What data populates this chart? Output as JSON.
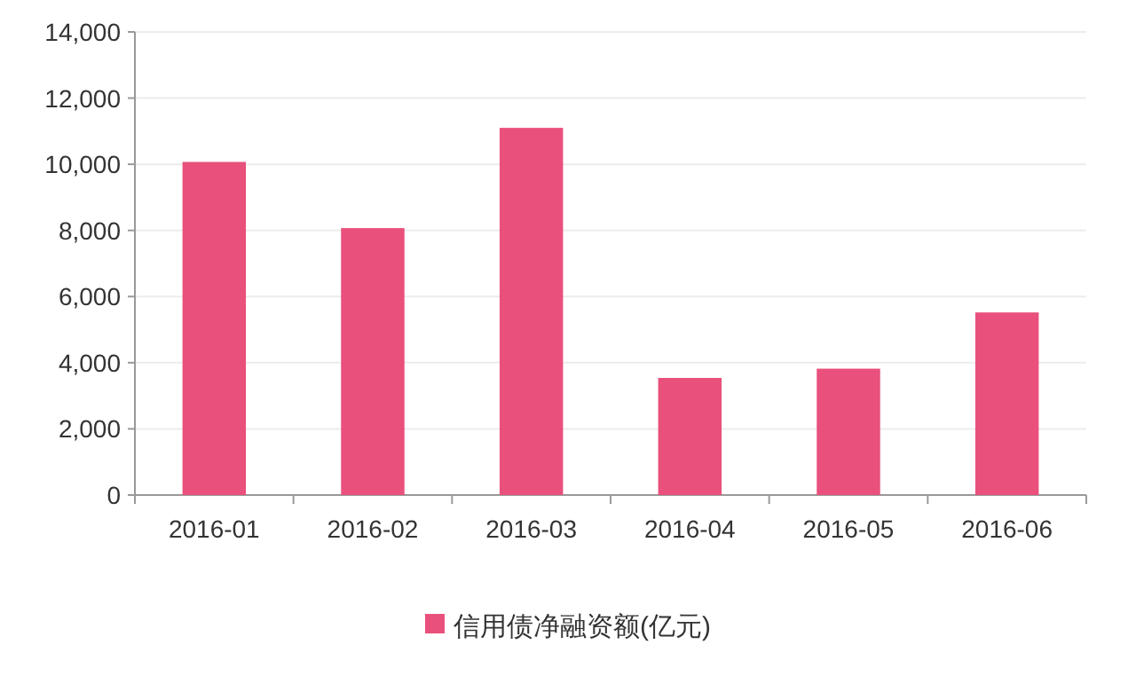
{
  "chart_data": {
    "type": "bar",
    "categories": [
      "2016-01",
      "2016-02",
      "2016-03",
      "2016-04",
      "2016-05",
      "2016-06"
    ],
    "series": [
      {
        "name": "信用债净融资额(亿元)",
        "color": "#e9507c",
        "values": [
          10070,
          8070,
          11100,
          3540,
          3820,
          5520
        ]
      }
    ],
    "ylim": [
      0,
      14000
    ],
    "yticks": [
      0,
      {
        "value": 2000,
        "label": "2,000"
      },
      {
        "value": 4000,
        "label": "4,000"
      },
      {
        "value": 6000,
        "label": "6,000"
      },
      {
        "value": 8000,
        "label": "8,000"
      },
      {
        "value": 10000,
        "label": "10,000"
      },
      {
        "value": 12000,
        "label": "12,000"
      },
      {
        "value": 14000,
        "label": "14,000"
      }
    ],
    "grid": "y",
    "legend": "bottom"
  }
}
